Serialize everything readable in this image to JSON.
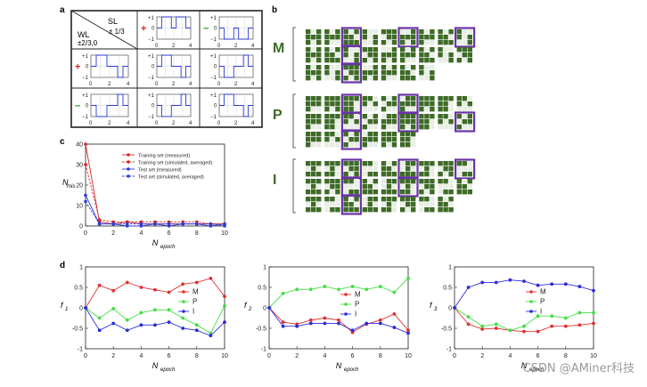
{
  "figure": {
    "panel_labels": [
      "a",
      "b",
      "c",
      "d"
    ],
    "watermark": "CSDN @AMiner科技"
  },
  "panel_a": {
    "header_wl": "WL",
    "header_wl_levels": "±2/3,0",
    "header_sl": "SL",
    "header_sl_levels": "± 1/3",
    "row_signs": [
      "+",
      "+",
      "−"
    ],
    "col_signs": [
      "+",
      "−"
    ],
    "axis_ticks": {
      "top": "+1",
      "zero": "0",
      "bottom": "−1",
      "x": [
        "0",
        "2",
        "4"
      ]
    },
    "colors": {
      "plus": "#d62728",
      "minus": "#2ca02c",
      "trace": "#2b3bd6"
    }
  },
  "panel_b": {
    "rows": [
      {
        "letter": "M",
        "code": [
          [
            1,
            0,
            1
          ],
          [
            1,
            1,
            1
          ],
          [
            1,
            0,
            1
          ]
        ]
      },
      {
        "letter": "P",
        "code": [
          [
            1,
            1,
            1
          ],
          [
            1,
            1,
            1
          ],
          [
            1,
            0,
            0
          ]
        ]
      },
      {
        "letter": "I",
        "code": [
          [
            1,
            1,
            1
          ],
          [
            0,
            1,
            0
          ],
          [
            1,
            1,
            1
          ]
        ]
      }
    ],
    "colors": {
      "on": "#3e6b27",
      "off": "#e8eee4",
      "highlight": "#6a33a8"
    }
  },
  "chart_data": [
    {
      "id": "c",
      "type": "line",
      "xlabel": "N",
      "xlabel_sub": "epoch",
      "ylabel": "N",
      "ylabel_sub": "mis",
      "xlim": [
        0,
        10
      ],
      "ylim": [
        0,
        40
      ],
      "xticks": [
        0,
        2,
        4,
        6,
        8,
        10
      ],
      "yticks": [
        0,
        10,
        20,
        30,
        40
      ],
      "legend_position": "top-center",
      "x": [
        0,
        1,
        2,
        3,
        4,
        5,
        6,
        7,
        8,
        9,
        10
      ],
      "series": [
        {
          "name": "Training set (measured)",
          "color": "#d62728",
          "dashed": false,
          "values": [
            40,
            2,
            1,
            2,
            1,
            1,
            1,
            1,
            1,
            1,
            1
          ]
        },
        {
          "name": "Training set (simulated, averaged)",
          "color": "#d62728",
          "dashed": true,
          "values": [
            30,
            3,
            2,
            2,
            2,
            2,
            2,
            2,
            2,
            1,
            1
          ]
        },
        {
          "name": "Test set (measured)",
          "color": "#2b3bd6",
          "dashed": false,
          "values": [
            15,
            1,
            1,
            0,
            0,
            1,
            0,
            1,
            1,
            0,
            1
          ]
        },
        {
          "name": "Test set (simulated, averaged)",
          "color": "#2b3bd6",
          "dashed": true,
          "values": [
            12,
            1,
            1,
            1,
            1,
            1,
            1,
            1,
            1,
            1,
            0
          ]
        }
      ]
    },
    {
      "id": "d1",
      "type": "line",
      "xlabel": "N",
      "xlabel_sub": "epoch",
      "ylabel": "f",
      "ylabel_sub": "1",
      "xlim": [
        0,
        10
      ],
      "ylim": [
        -1,
        1
      ],
      "xticks": [
        0,
        2,
        4,
        6,
        8,
        10
      ],
      "yticks": [
        -1,
        -0.5,
        0,
        0.5,
        1
      ],
      "legend_position": "center-right",
      "x": [
        0,
        1,
        2,
        3,
        4,
        5,
        6,
        7,
        8,
        9,
        10
      ],
      "series": [
        {
          "name": "M",
          "color": "#e03030",
          "values": [
            0,
            0.55,
            0.42,
            0.62,
            0.5,
            0.44,
            0.38,
            0.58,
            0.62,
            0.72,
            0.28
          ]
        },
        {
          "name": "P",
          "color": "#44dd44",
          "values": [
            0,
            -0.25,
            -0.02,
            -0.3,
            -0.12,
            -0.05,
            -0.05,
            -0.25,
            -0.42,
            -0.62,
            0.05
          ]
        },
        {
          "name": "I",
          "color": "#2b2bdd",
          "values": [
            0,
            -0.55,
            -0.38,
            -0.55,
            -0.42,
            -0.42,
            -0.35,
            -0.5,
            -0.55,
            -0.68,
            -0.35
          ]
        }
      ]
    },
    {
      "id": "d2",
      "type": "line",
      "xlabel": "N",
      "xlabel_sub": "epoch",
      "ylabel": "f",
      "ylabel_sub": "2",
      "xlim": [
        0,
        10
      ],
      "ylim": [
        -1,
        1
      ],
      "xticks": [
        0,
        2,
        4,
        6,
        8,
        10
      ],
      "yticks": [
        -1,
        -0.5,
        0,
        0.5,
        1
      ],
      "legend_position": "center",
      "x": [
        0,
        1,
        2,
        3,
        4,
        5,
        6,
        7,
        8,
        9,
        10
      ],
      "series": [
        {
          "name": "M",
          "color": "#e03030",
          "values": [
            0,
            -0.35,
            -0.4,
            -0.3,
            -0.25,
            -0.3,
            -0.6,
            -0.4,
            -0.3,
            -0.15,
            -0.55
          ]
        },
        {
          "name": "P",
          "color": "#44dd44",
          "values": [
            0,
            0.35,
            0.45,
            0.45,
            0.52,
            0.45,
            0.52,
            0.45,
            0.52,
            0.38,
            0.72
          ]
        },
        {
          "name": "I",
          "color": "#2b2bdd",
          "values": [
            0,
            -0.45,
            -0.45,
            -0.38,
            -0.38,
            -0.38,
            -0.55,
            -0.38,
            -0.38,
            -0.48,
            -0.62
          ]
        }
      ]
    },
    {
      "id": "d3",
      "type": "line",
      "xlabel": "N",
      "xlabel_sub": "epoch",
      "ylabel": "f",
      "ylabel_sub": "3",
      "xlim": [
        0,
        10
      ],
      "ylim": [
        -1,
        1
      ],
      "xticks": [
        0,
        2,
        4,
        6,
        8,
        10
      ],
      "yticks": [
        -1,
        -0.5,
        0,
        0.5,
        1
      ],
      "legend_position": "center-right",
      "x": [
        0,
        1,
        2,
        3,
        4,
        5,
        6,
        7,
        8,
        9,
        10
      ],
      "series": [
        {
          "name": "M",
          "color": "#e03030",
          "values": [
            0,
            -0.4,
            -0.52,
            -0.5,
            -0.55,
            -0.58,
            -0.58,
            -0.45,
            -0.45,
            -0.42,
            -0.38
          ]
        },
        {
          "name": "P",
          "color": "#44dd44",
          "values": [
            0,
            -0.22,
            -0.45,
            -0.4,
            -0.55,
            -0.45,
            -0.2,
            -0.2,
            -0.25,
            -0.12,
            -0.12
          ]
        },
        {
          "name": "I",
          "color": "#2b2bdd",
          "values": [
            0,
            0.5,
            0.62,
            0.62,
            0.68,
            0.65,
            0.55,
            0.58,
            0.58,
            0.52,
            0.42
          ]
        }
      ]
    }
  ]
}
